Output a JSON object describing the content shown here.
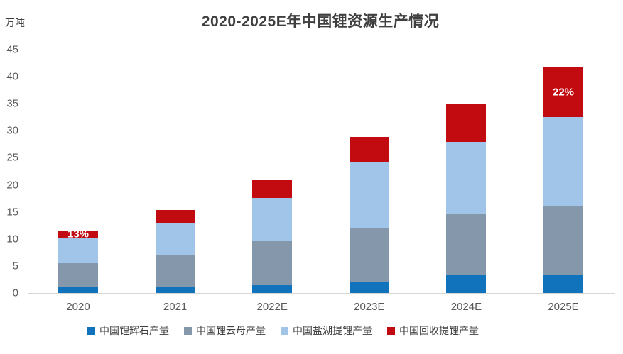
{
  "chart_data": {
    "type": "bar",
    "stacked": true,
    "title": "2020-2025E年中国锂资源生产情况",
    "unit_label": "万吨",
    "categories": [
      "2020",
      "2021",
      "2022E",
      "2023E",
      "2024E",
      "2025E"
    ],
    "series": [
      {
        "name": "中国锂辉石产量",
        "color": "#1173BC",
        "values": [
          1.0,
          1.0,
          1.5,
          2.0,
          3.3,
          3.3
        ]
      },
      {
        "name": "中国锂云母产量",
        "color": "#8497AB",
        "values": [
          4.5,
          6.0,
          8.1,
          10.1,
          11.3,
          12.9
        ]
      },
      {
        "name": "中国盐湖提锂产量",
        "color": "#A0C5E8",
        "values": [
          4.6,
          5.9,
          8.0,
          12.0,
          13.4,
          16.3
        ]
      },
      {
        "name": "中国回收提锂产量",
        "color": "#C20B10",
        "values": [
          1.5,
          2.5,
          3.2,
          4.7,
          7.0,
          9.3
        ]
      }
    ],
    "totals": [
      11.6,
      15.4,
      20.8,
      28.8,
      35.0,
      41.8
    ],
    "yticks": [
      0,
      5,
      10,
      15,
      20,
      25,
      30,
      35,
      40,
      45
    ],
    "ylim": [
      0,
      45
    ],
    "grid": false,
    "legend_position": "bottom",
    "annotations": [
      {
        "category_index": 0,
        "series_index": 3,
        "text": "13%",
        "color": "#FFFFFF"
      },
      {
        "category_index": 5,
        "series_index": 3,
        "text": "22%",
        "color": "#FFFFFF"
      }
    ]
  }
}
